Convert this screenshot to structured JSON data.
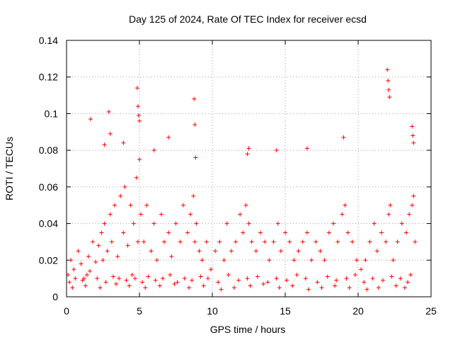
{
  "chart_data": {
    "type": "scatter",
    "title": "Day 125 of 2024, Rate Of TEC Index for receiver ecsd",
    "xlabel": "GPS time / hours",
    "ylabel": "ROTI / TECUs",
    "xlim": [
      0,
      25
    ],
    "ylim": [
      0,
      0.14
    ],
    "x_ticks": [
      "0",
      "5",
      "10",
      "15",
      "20",
      "25"
    ],
    "y_ticks": [
      "0",
      "0.02",
      "0.04",
      "0.06",
      "0.08",
      "0.1",
      "0.12",
      "0.14"
    ],
    "grid": true,
    "marker": "+",
    "series_color": "#ff0000",
    "series": [
      {
        "x": [
          0.1,
          0.3,
          0.5,
          0.8,
          1.0,
          1.2,
          1.5,
          1.6,
          1.8,
          2.0,
          2.2,
          2.4,
          2.5,
          2.6,
          2.8,
          3.0,
          3.1,
          3.3,
          3.5,
          3.7,
          3.9,
          4.0,
          4.2,
          4.4,
          4.6,
          4.8,
          4.9,
          5.0,
          5.1,
          5.3,
          5.5,
          5.8,
          6.0,
          6.2,
          6.5,
          6.7,
          7.0,
          7.2,
          7.5,
          7.8,
          8.0,
          8.3,
          8.5,
          8.7,
          8.8,
          8.9,
          9.1,
          9.3,
          9.6,
          9.9,
          10.2,
          10.5,
          10.8,
          11.0,
          11.3,
          11.6,
          11.9,
          12.1,
          12.3,
          12.5,
          12.7,
          13.0,
          13.3,
          13.6,
          13.9,
          14.2,
          14.5,
          14.7,
          15.0,
          15.3,
          15.6,
          15.9,
          16.2,
          16.5,
          16.8,
          17.1,
          17.4,
          17.7,
          18.0,
          18.3,
          18.6,
          18.9,
          19.1,
          19.3,
          19.6,
          19.9,
          20.2,
          20.5,
          20.8,
          21.1,
          21.3,
          21.6,
          21.9,
          22.1,
          22.2,
          22.4,
          22.7,
          23.0,
          23.3,
          23.5,
          23.7,
          23.8,
          23.9,
          0.2,
          0.6,
          1.1,
          1.4,
          2.1,
          2.7,
          3.2,
          3.6,
          4.1,
          4.5,
          4.7,
          5.2,
          5.6,
          6.1,
          6.6,
          7.1,
          7.6,
          8.1,
          8.6,
          9.2,
          9.7,
          10.4,
          11.1,
          11.8,
          12.4,
          13.1,
          13.8,
          14.4,
          15.1,
          15.8,
          16.4,
          17.2,
          17.9,
          18.5,
          19.2,
          19.8,
          20.4,
          21.0,
          21.7,
          22.3,
          22.9,
          23.4,
          23.6,
          0.4,
          1.3,
          2.3,
          3.4,
          4.3,
          5.4,
          6.4,
          7.4,
          8.4,
          9.4,
          10.6,
          11.5,
          12.6,
          13.5,
          14.6,
          15.5,
          16.6,
          17.5,
          18.4,
          19.4,
          20.6,
          21.4,
          22.6,
          23.2,
          2.9,
          3.0,
          4.85,
          4.9,
          4.95,
          5.0,
          8.75,
          8.8,
          8.85,
          12.5,
          12.4,
          22.0,
          22.05,
          22.1,
          22.15,
          23.7,
          23.75,
          23.8,
          1.65,
          19.0,
          14.4,
          16.5,
          7.0,
          6.0,
          3.9,
          2.6
        ],
        "y": [
          0.012,
          0.02,
          0.015,
          0.025,
          0.018,
          0.01,
          0.022,
          0.014,
          0.03,
          0.019,
          0.028,
          0.035,
          0.02,
          0.04,
          0.025,
          0.045,
          0.03,
          0.05,
          0.022,
          0.055,
          0.035,
          0.06,
          0.028,
          0.05,
          0.04,
          0.065,
          0.03,
          0.075,
          0.045,
          0.03,
          0.05,
          0.025,
          0.04,
          0.02,
          0.045,
          0.03,
          0.035,
          0.022,
          0.04,
          0.03,
          0.05,
          0.035,
          0.045,
          0.055,
          0.03,
          0.04,
          0.025,
          0.02,
          0.03,
          0.015,
          0.025,
          0.03,
          0.02,
          0.04,
          0.025,
          0.03,
          0.045,
          0.035,
          0.05,
          0.04,
          0.03,
          0.025,
          0.035,
          0.03,
          0.02,
          0.03,
          0.04,
          0.025,
          0.035,
          0.03,
          0.02,
          0.025,
          0.03,
          0.035,
          0.02,
          0.03,
          0.025,
          0.02,
          0.035,
          0.04,
          0.03,
          0.045,
          0.05,
          0.035,
          0.03,
          0.02,
          0.015,
          0.02,
          0.03,
          0.04,
          0.025,
          0.035,
          0.03,
          0.045,
          0.05,
          0.02,
          0.03,
          0.04,
          0.035,
          0.045,
          0.05,
          0.055,
          0.03,
          0.008,
          0.01,
          0.009,
          0.012,
          0.01,
          0.008,
          0.011,
          0.01,
          0.009,
          0.012,
          0.01,
          0.008,
          0.011,
          0.009,
          0.01,
          0.012,
          0.008,
          0.01,
          0.009,
          0.011,
          0.01,
          0.008,
          0.012,
          0.009,
          0.01,
          0.011,
          0.008,
          0.01,
          0.009,
          0.012,
          0.01,
          0.008,
          0.011,
          0.009,
          0.01,
          0.012,
          0.008,
          0.01,
          0.009,
          0.011,
          0.01,
          0.008,
          0.012,
          0.005,
          0.006,
          0.005,
          0.007,
          0.006,
          0.005,
          0.006,
          0.007,
          0.005,
          0.006,
          0.004,
          0.005,
          0.006,
          0.007,
          0.005,
          0.006,
          0.004,
          0.005,
          0.006,
          0.005,
          0.004,
          0.005,
          0.006,
          0.005,
          0.101,
          0.089,
          0.114,
          0.104,
          0.099,
          0.096,
          0.108,
          0.094,
          0.076,
          0.081,
          0.078,
          0.124,
          0.118,
          0.113,
          0.109,
          0.093,
          0.088,
          0.084,
          0.097,
          0.087,
          0.08,
          0.081,
          0.087,
          0.08,
          0.084,
          0.083
        ]
      }
    ]
  }
}
